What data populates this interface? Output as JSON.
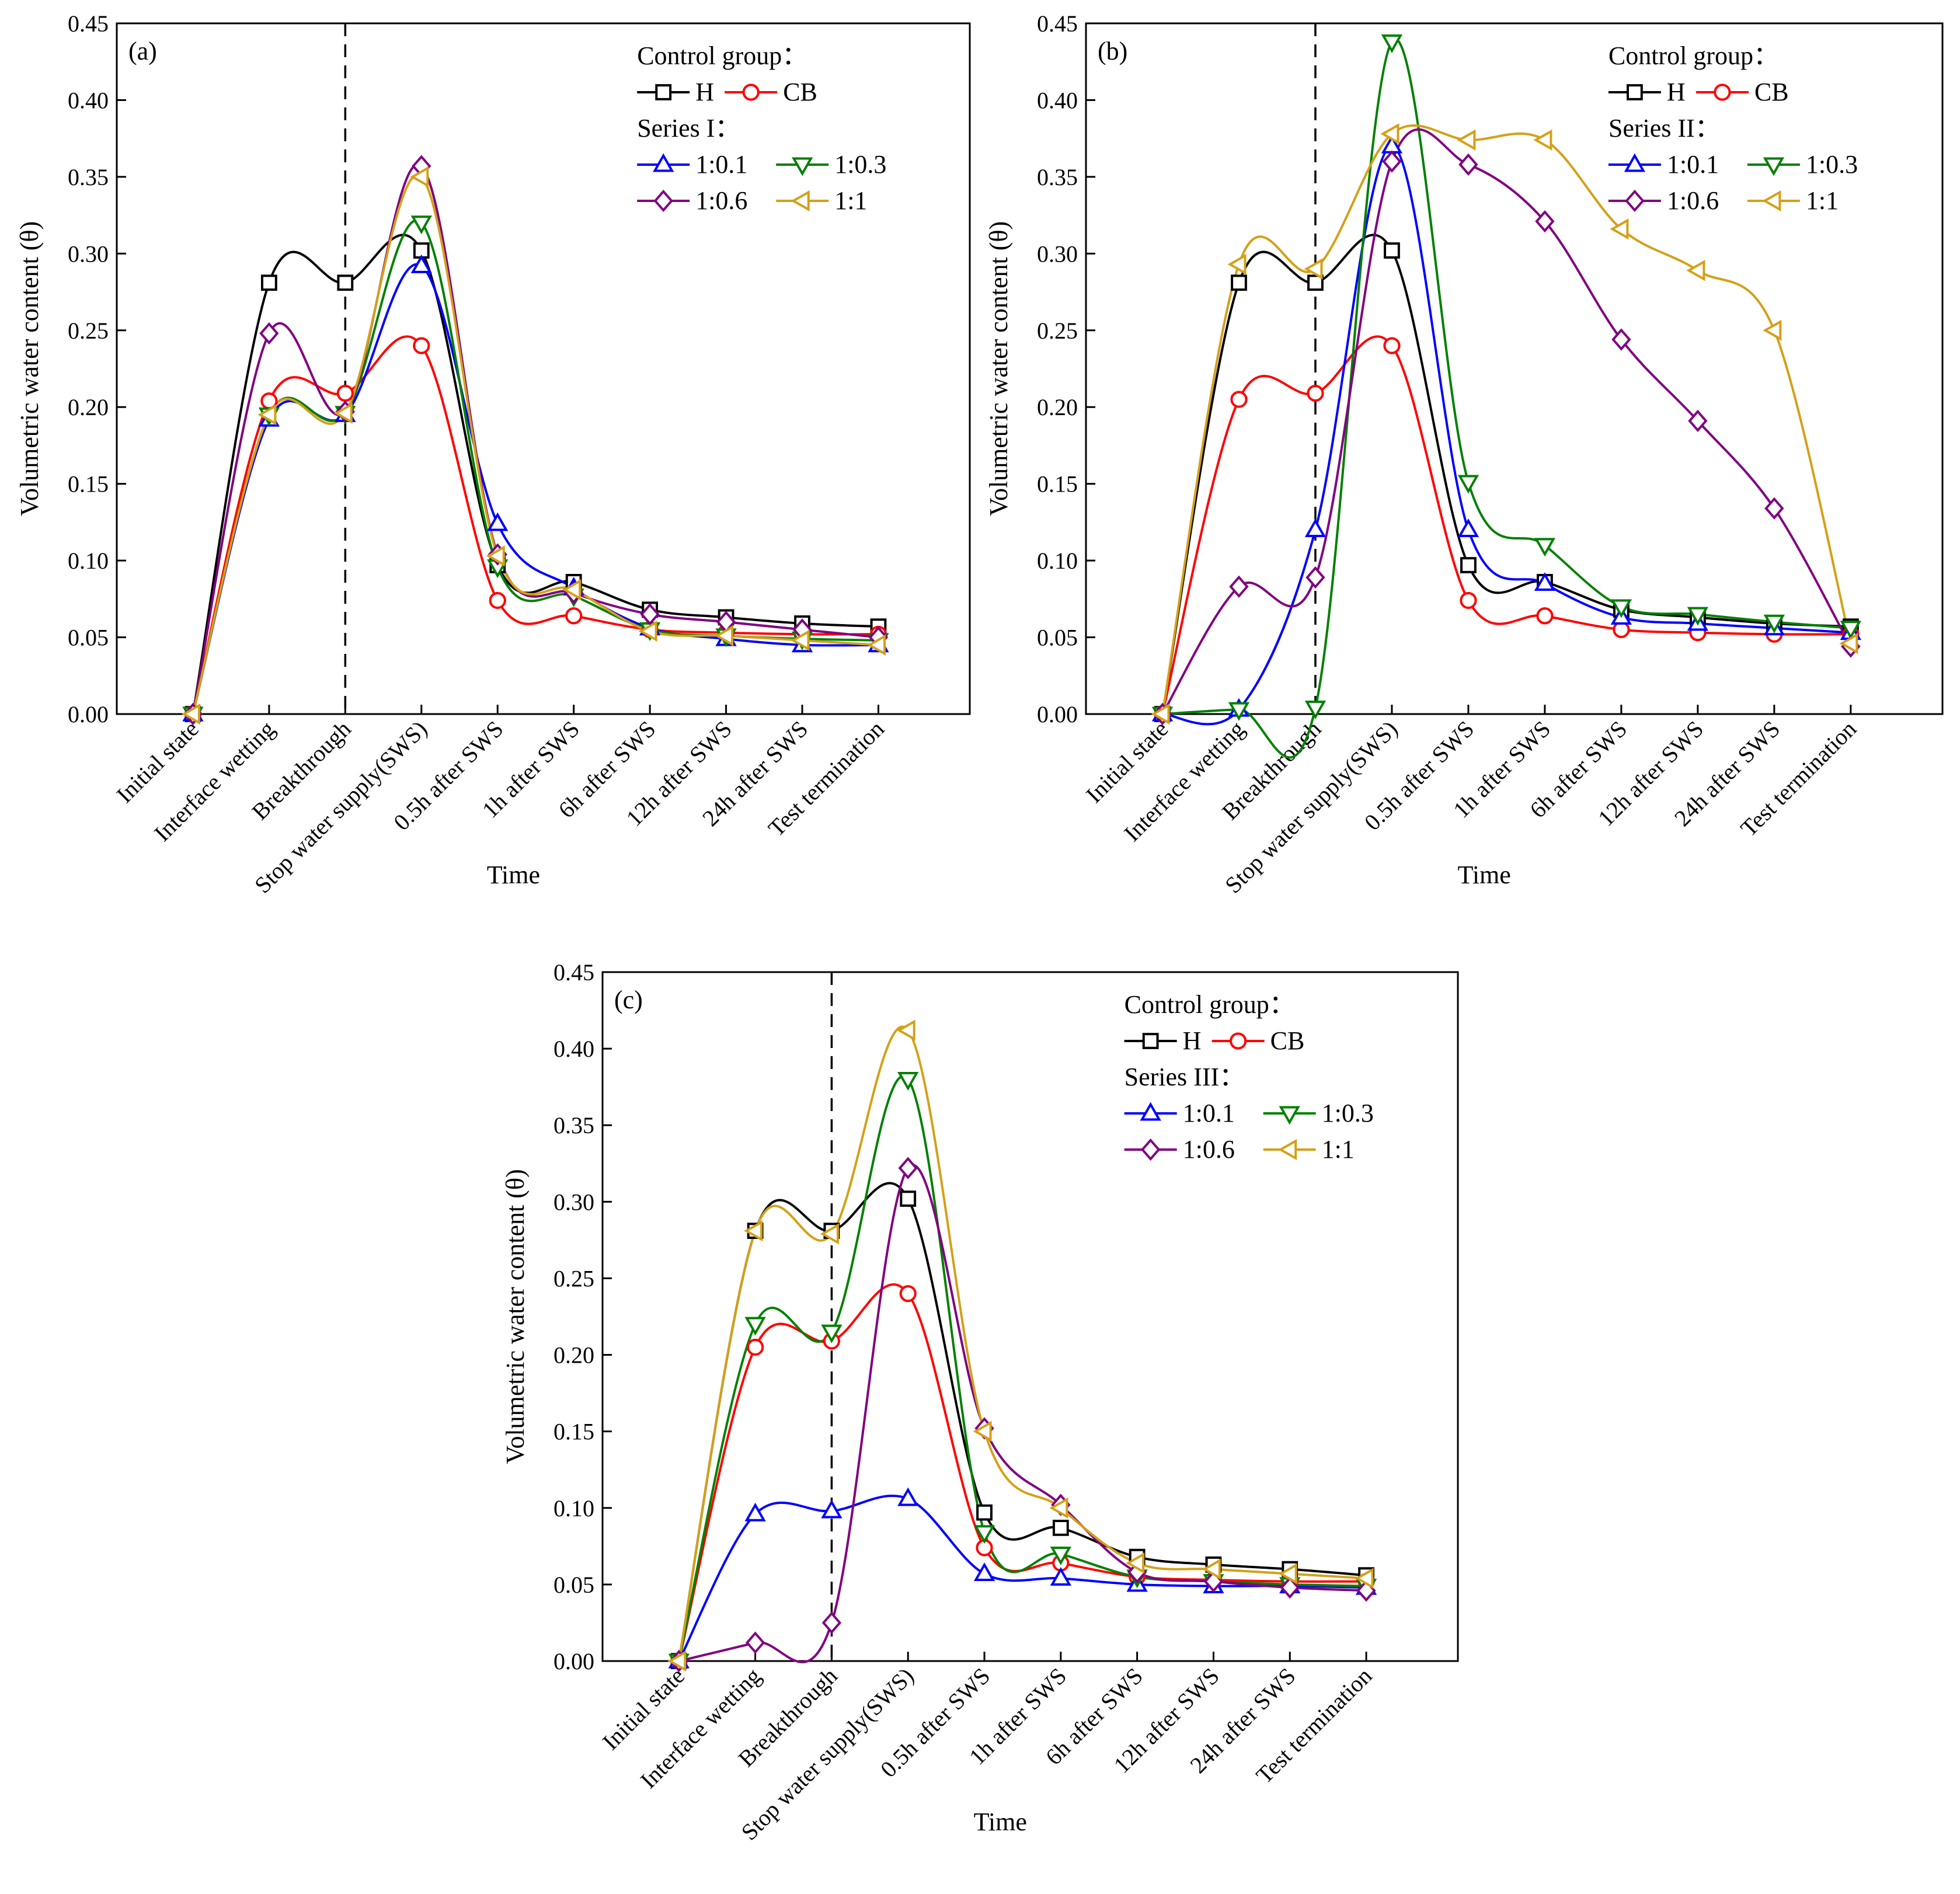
{
  "colors": {
    "H": "#000000",
    "CB": "#ff0000",
    "1:0.1": "#0000ff",
    "1:0.3": "#008000",
    "1:0.6": "#800080",
    "1:1": "#d4a017"
  },
  "markers": {
    "H": "square",
    "CB": "circle",
    "1:0.1": "triangle-up",
    "1:0.3": "triangle-down",
    "1:0.6": "diamond",
    "1:1": "triangle-left"
  },
  "chart_data": [
    {
      "type": "line",
      "panel_label": "(a)",
      "xlabel": "Time",
      "ylabel": "Volumetric water content (θ)",
      "ylim": [
        0,
        0.45
      ],
      "yticks": [
        "0.00",
        "0.05",
        "0.10",
        "0.15",
        "0.20",
        "0.25",
        "0.30",
        "0.35",
        "0.40",
        "0.45"
      ],
      "categories": [
        "Initial state",
        "Interface wetting",
        "Breakthrough",
        "Stop water supply(SWS)",
        "0.5h after SWS",
        "1h after SWS",
        "6h after SWS",
        "12h after SWS",
        "24h after SWS",
        "Test termination"
      ],
      "vline_after_category": "Breakthrough",
      "legend": {
        "control_title": "Control group：",
        "series_title": "Series I："
      },
      "series": [
        {
          "name": "H",
          "values": [
            0.0,
            0.281,
            0.281,
            0.302,
            0.097,
            0.086,
            0.068,
            0.063,
            0.059,
            0.057
          ]
        },
        {
          "name": "CB",
          "values": [
            0.0,
            0.204,
            0.209,
            0.24,
            0.074,
            0.064,
            0.055,
            0.053,
            0.052,
            0.052
          ]
        },
        {
          "name": "1:0.1",
          "values": [
            0.0,
            0.192,
            0.195,
            0.292,
            0.124,
            0.082,
            0.056,
            0.049,
            0.045,
            0.045
          ]
        },
        {
          "name": "1:0.3",
          "values": [
            0.0,
            0.195,
            0.196,
            0.32,
            0.096,
            0.077,
            0.055,
            0.051,
            0.049,
            0.048
          ]
        },
        {
          "name": "1:0.6",
          "values": [
            0.0,
            0.248,
            0.197,
            0.357,
            0.104,
            0.079,
            0.065,
            0.06,
            0.055,
            0.05
          ]
        },
        {
          "name": "1:1",
          "values": [
            0.0,
            0.195,
            0.196,
            0.35,
            0.103,
            0.081,
            0.054,
            0.051,
            0.048,
            0.045
          ]
        }
      ]
    },
    {
      "type": "line",
      "panel_label": "(b)",
      "xlabel": "Time",
      "ylabel": "Volumetric water content (θ)",
      "ylim": [
        0,
        0.45
      ],
      "yticks": [
        "0.00",
        "0.05",
        "0.10",
        "0.15",
        "0.20",
        "0.25",
        "0.30",
        "0.35",
        "0.40",
        "0.45"
      ],
      "categories": [
        "Initial state",
        "Interface wetting",
        "Breakthrough",
        "Stop water supply(SWS)",
        "0.5h after SWS",
        "1h after SWS",
        "6h after SWS",
        "12h after SWS",
        "24h after SWS",
        "Test termination"
      ],
      "vline_after_category": "Breakthrough",
      "legend": {
        "control_title": "Control group：",
        "series_title": "Series II："
      },
      "series": [
        {
          "name": "H",
          "values": [
            0.0,
            0.281,
            0.281,
            0.302,
            0.097,
            0.086,
            0.068,
            0.063,
            0.059,
            0.057
          ]
        },
        {
          "name": "CB",
          "values": [
            0.0,
            0.205,
            0.209,
            0.24,
            0.074,
            0.064,
            0.055,
            0.053,
            0.052,
            0.052
          ]
        },
        {
          "name": "1:0.1",
          "values": [
            0.0,
            0.003,
            0.12,
            0.37,
            0.12,
            0.085,
            0.063,
            0.059,
            0.056,
            0.053
          ]
        },
        {
          "name": "1:0.3",
          "values": [
            0.0,
            0.003,
            0.004,
            0.438,
            0.151,
            0.11,
            0.07,
            0.065,
            0.06,
            0.056
          ]
        },
        {
          "name": "1:0.6",
          "values": [
            0.0,
            0.083,
            0.089,
            0.36,
            0.358,
            0.321,
            0.244,
            0.191,
            0.134,
            0.044
          ]
        },
        {
          "name": "1:1",
          "values": [
            0.0,
            0.293,
            0.29,
            0.378,
            0.374,
            0.374,
            0.316,
            0.289,
            0.25,
            0.046
          ]
        }
      ]
    },
    {
      "type": "line",
      "panel_label": "(c)",
      "xlabel": "Time",
      "ylabel": "Volumetric water content (θ)",
      "ylim": [
        0,
        0.45
      ],
      "yticks": [
        "0.00",
        "0.05",
        "0.10",
        "0.15",
        "0.20",
        "0.25",
        "0.30",
        "0.35",
        "0.40",
        "0.45"
      ],
      "categories": [
        "Initial state",
        "Interface wetting",
        "Breakthrough",
        "Stop water supply(SWS)",
        "0.5h after SWS",
        "1h after SWS",
        "6h after SWS",
        "12h after SWS",
        "24h after SWS",
        "Test termination"
      ],
      "vline_after_category": "Breakthrough",
      "legend": {
        "control_title": "Control group：",
        "series_title": "Series III："
      },
      "series": [
        {
          "name": "H",
          "values": [
            0.0,
            0.281,
            0.281,
            0.302,
            0.097,
            0.087,
            0.068,
            0.063,
            0.06,
            0.056
          ]
        },
        {
          "name": "CB",
          "values": [
            0.0,
            0.205,
            0.209,
            0.24,
            0.074,
            0.064,
            0.055,
            0.053,
            0.052,
            0.052
          ]
        },
        {
          "name": "1:0.1",
          "values": [
            0.0,
            0.096,
            0.098,
            0.106,
            0.057,
            0.054,
            0.05,
            0.049,
            0.049,
            0.048
          ]
        },
        {
          "name": "1:0.3",
          "values": [
            0.0,
            0.22,
            0.215,
            0.38,
            0.084,
            0.07,
            0.055,
            0.052,
            0.05,
            0.049
          ]
        },
        {
          "name": "1:0.6",
          "values": [
            0.0,
            0.012,
            0.025,
            0.322,
            0.152,
            0.102,
            0.058,
            0.052,
            0.048,
            0.046
          ]
        },
        {
          "name": "1:1",
          "values": [
            0.0,
            0.281,
            0.279,
            0.412,
            0.15,
            0.1,
            0.064,
            0.06,
            0.057,
            0.054
          ]
        }
      ]
    }
  ]
}
